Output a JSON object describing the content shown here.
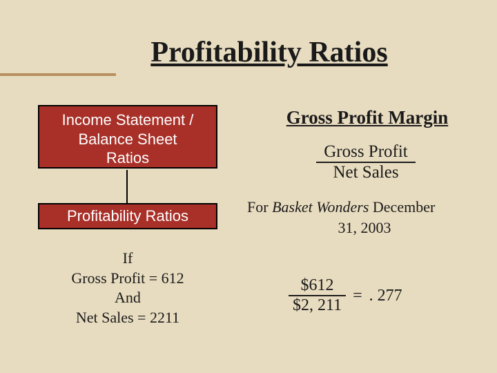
{
  "title": "Profitability Ratios",
  "box1": {
    "line1": "Income Statement /",
    "line2": "Balance Sheet",
    "line3": "Ratios"
  },
  "box2": "Profitability Ratios",
  "if_block": {
    "l1": "If",
    "l2": "Gross Profit = 612",
    "l3": "And",
    "l4": "Net Sales = 2211"
  },
  "gpm": {
    "title": "Gross Profit Margin",
    "formula_num": "Gross Profit",
    "formula_den": "Net Sales",
    "for_prefix": "For ",
    "for_company": "Basket Wonders",
    "for_suffix": " December",
    "for_date": "31, 2003",
    "calc_num": "$612",
    "calc_den": "$2, 211",
    "calc_eq": "=",
    "calc_result": ". 277"
  },
  "colors": {
    "background": "#e8dcc0",
    "box_bg": "#a83028",
    "accent": "#b89060",
    "text": "#1a1a1a"
  }
}
